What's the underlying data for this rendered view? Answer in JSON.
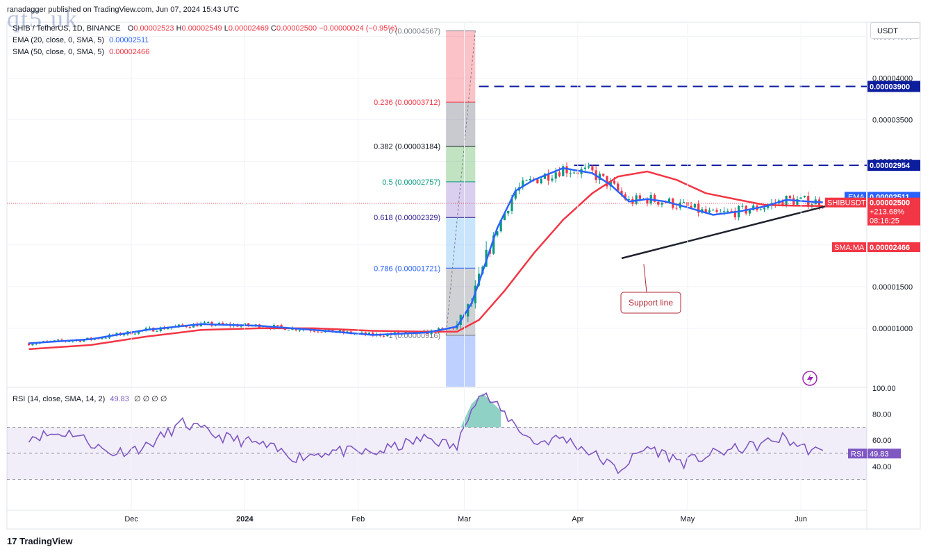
{
  "header": {
    "published": "ranadagger published on TradingView.com, Jun 07, 2024 15:43 UTC",
    "symbol": "SHIB / TetherUS, 1D, BINANCE",
    "ohlc": {
      "o_label": "O",
      "o": "0.00002523",
      "h_label": "H",
      "h": "0.00002549",
      "l_label": "L",
      "l": "0.00002469",
      "c_label": "C",
      "c": "0.00002500",
      "change": "−0.00000024 (−0.95%)"
    },
    "ema_label": "EMA (20, close, 0, SMA, 5)",
    "ema_value": "0.00002511",
    "sma_label": "SMA (50, close, 0, SMA, 5)",
    "sma_value": "0.00002466"
  },
  "watermark": "qt5.uk",
  "currency_button": "USDT",
  "fib_levels": [
    {
      "label": "0 (0.00004567)",
      "color": "#787b86"
    },
    {
      "label": "0.236 (0.00003712)",
      "color": "#f23645"
    },
    {
      "label": "0.382 (0.00003184)",
      "color": "#131722"
    },
    {
      "label": "0.5 (0.00002757)",
      "color": "#089981"
    },
    {
      "label": "0.618 (0.00002329)",
      "color": "#311b92"
    },
    {
      "label": "0.786 (0.00001721)",
      "color": "#2962ff"
    },
    {
      "label": "1 (0.00000916)",
      "color": "#787b86"
    }
  ],
  "price_axis": [
    "0.00004500",
    "0.00004000",
    "0.00003500",
    "0.00003000",
    "0.00002500",
    "0.00002000",
    "0.00001500",
    "0.00001000"
  ],
  "tags": {
    "r1": "0.00003900",
    "r2": "0.00002954",
    "ema_name": "EMA",
    "ema_val": "0.00002511",
    "sym_name": "SHIBUSDT",
    "sym_val": "0.00002500",
    "sym_change": "+213.68%",
    "sym_time": "08:16:25",
    "sma_name": "SMA:MA",
    "sma_val": "0.00002466"
  },
  "annotation": "Support line",
  "rsi": {
    "label": "RSI (14, close, SMA, 14, 2)",
    "value": "49.83",
    "extras": "∅ ∅ ∅ ∅",
    "axis": [
      "100.00",
      "80.00",
      "60.00",
      "40.00"
    ],
    "tag_name": "RSI",
    "tag_val": "49.83"
  },
  "time_axis": [
    "Dec",
    "2024",
    "Feb",
    "Mar",
    "Apr",
    "May",
    "Jun"
  ],
  "footer": "TradingView",
  "colors": {
    "ema": "#2962ff",
    "sma": "#f23645",
    "up": "#089981",
    "down": "#f23645",
    "rsi": "#7e57c2",
    "support": "#1e222d",
    "resistance": "#0c1d9e"
  },
  "chart_data": {
    "type": "line",
    "title": "SHIB / TetherUS, 1D, BINANCE",
    "x_labels": [
      "Dec",
      "2024",
      "Feb",
      "Mar",
      "Apr",
      "May",
      "Jun"
    ],
    "ylim": [
      5e-06,
      4.65e-05
    ],
    "series": [
      {
        "name": "EMA (20, close, 0, SMA, 5)",
        "x": [
          "2023-11-03",
          "2023-11-20",
          "2023-12-05",
          "2023-12-20",
          "2024-01-05",
          "2024-01-20",
          "2024-02-05",
          "2024-02-20",
          "2024-02-28",
          "2024-03-03",
          "2024-03-06",
          "2024-03-10",
          "2024-03-15",
          "2024-03-20",
          "2024-03-28",
          "2024-04-05",
          "2024-04-10",
          "2024-04-15",
          "2024-04-20",
          "2024-04-25",
          "2024-05-01",
          "2024-05-08",
          "2024-05-15",
          "2024-05-22",
          "2024-05-28",
          "2024-06-03",
          "2024-06-07"
        ],
        "y": [
          8.2e-06,
          8.7e-06,
          9.8e-06,
          1.05e-05,
          1.03e-05,
          9.8e-06,
          9.2e-06,
          9.5e-06,
          1.02e-05,
          1.3e-05,
          1.68e-05,
          2.2e-05,
          2.65e-05,
          2.78e-05,
          2.92e-05,
          2.86e-05,
          2.72e-05,
          2.52e-05,
          2.55e-05,
          2.52e-05,
          2.45e-05,
          2.36e-05,
          2.4e-05,
          2.46e-05,
          2.54e-05,
          2.52e-05,
          2.511e-05
        ]
      },
      {
        "name": "SMA (50, close, 0, SMA, 5)",
        "x": [
          "2023-11-03",
          "2023-11-20",
          "2023-12-05",
          "2023-12-20",
          "2024-01-05",
          "2024-01-20",
          "2024-02-05",
          "2024-02-20",
          "2024-02-28",
          "2024-03-05",
          "2024-03-12",
          "2024-03-20",
          "2024-03-28",
          "2024-04-05",
          "2024-04-12",
          "2024-04-20",
          "2024-04-28",
          "2024-05-06",
          "2024-05-15",
          "2024-05-22",
          "2024-05-30",
          "2024-06-07"
        ],
        "y": [
          7.5e-06,
          8e-06,
          9e-06,
          9.8e-06,
          1e-05,
          1e-05,
          9.7e-06,
          9.6e-06,
          9.6e-06,
          1.1e-05,
          1.45e-05,
          1.9e-05,
          2.3e-05,
          2.62e-05,
          2.82e-05,
          2.88e-05,
          2.78e-05,
          2.62e-05,
          2.54e-05,
          2.48e-05,
          2.47e-05,
          2.466e-05
        ]
      },
      {
        "name": "RSI (14, close, SMA, 14, 2)",
        "x": [
          "2023-11-03",
          "2023-11-15",
          "2023-11-25",
          "2023-12-05",
          "2023-12-15",
          "2023-12-25",
          "2024-01-05",
          "2024-01-15",
          "2024-01-25",
          "2024-02-05",
          "2024-02-20",
          "2024-02-28",
          "2024-03-03",
          "2024-03-06",
          "2024-03-12",
          "2024-03-20",
          "2024-03-28",
          "2024-04-05",
          "2024-04-12",
          "2024-04-20",
          "2024-04-30",
          "2024-05-10",
          "2024-05-20",
          "2024-05-27",
          "2024-06-02",
          "2024-06-07"
        ],
        "y": [
          63,
          66,
          50,
          55,
          73,
          63,
          57,
          47,
          52,
          50,
          62,
          54,
          88,
          96,
          80,
          58,
          62,
          50,
          37,
          55,
          43,
          51,
          56,
          62,
          54,
          49.83
        ]
      }
    ],
    "levels": [
      {
        "name": "0.236",
        "y": 3.712e-05
      },
      {
        "name": "0.382",
        "y": 3.184e-05
      },
      {
        "name": "0.5",
        "y": 2.757e-05
      },
      {
        "name": "0.618",
        "y": 2.329e-05
      },
      {
        "name": "0.786",
        "y": 1.721e-05
      },
      {
        "name": "0",
        "y": 4.567e-05
      },
      {
        "name": "resistance_1",
        "y": 3.9e-05
      },
      {
        "name": "resistance_2",
        "y": 2.954e-05
      }
    ],
    "support_line": {
      "x": [
        "2024-04-13",
        "2024-06-10"
      ],
      "y": [
        1.84e-05,
        2.5e-05
      ]
    },
    "last_close": 2.5e-05
  }
}
